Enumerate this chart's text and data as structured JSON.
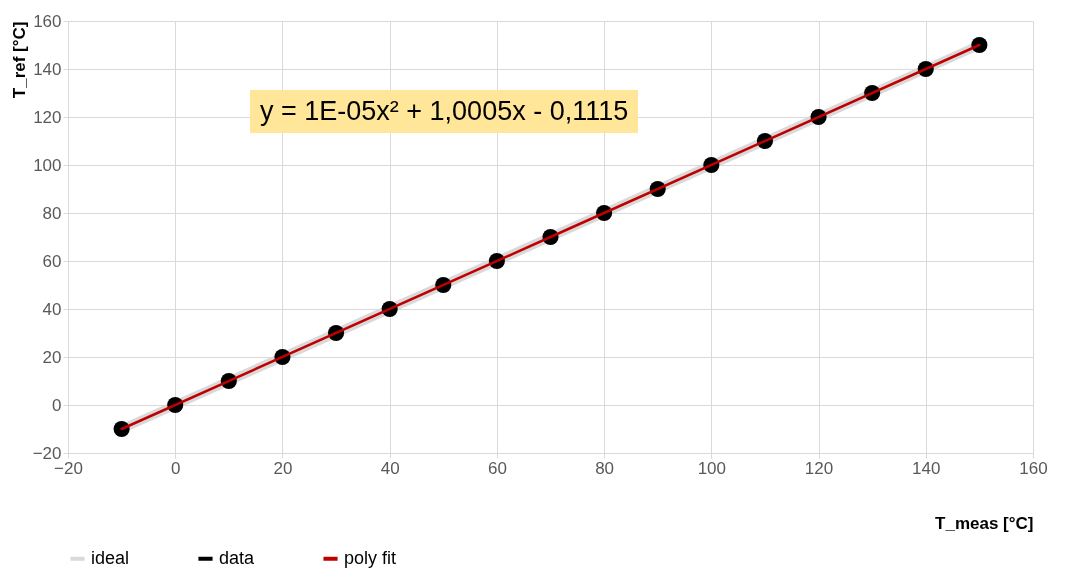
{
  "chart_data": {
    "type": "line",
    "xlabel": "T_meas [°C]",
    "ylabel": "T_ref [°C]",
    "xlim": [
      -20,
      160
    ],
    "xticks": [
      -20,
      0,
      20,
      40,
      60,
      80,
      100,
      120,
      140,
      160
    ],
    "ylim": [
      -20,
      160
    ],
    "yticks": [
      -20,
      0,
      20,
      40,
      60,
      80,
      100,
      120,
      140,
      160
    ],
    "grid": true,
    "legend": "bottom",
    "annotations": [
      "y = 1E-05x² + 1,0005x - 0,1115"
    ],
    "series": [
      {
        "name": "ideal",
        "color": "#d9d9d9",
        "x": [
          -10,
          150
        ],
        "values": [
          -10,
          150
        ]
      },
      {
        "name": "data",
        "type": "scatter",
        "marker": "circle",
        "color": "#000000",
        "x": [
          -10,
          0,
          10,
          20,
          30,
          40,
          50,
          60,
          70,
          80,
          90,
          100,
          110,
          120,
          130,
          140,
          150
        ],
        "values": [
          -10,
          0,
          10,
          20,
          30,
          40,
          50,
          60,
          70,
          80,
          90,
          100,
          110,
          120,
          130,
          140,
          150
        ]
      },
      {
        "name": "poly fit",
        "color": "#c00000",
        "x": [
          -10,
          70,
          150
        ],
        "values": [
          -10,
          70,
          150
        ]
      }
    ]
  }
}
